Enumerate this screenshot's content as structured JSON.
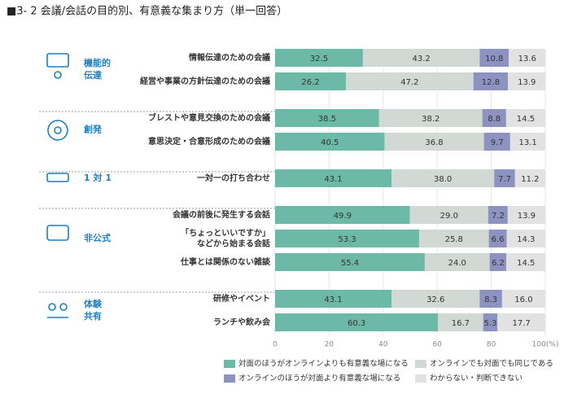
{
  "chart_data": {
    "type": "stacked-bar-horizontal",
    "title": "■3- 2 会議/会話の目的別、有意義な集まり方（単一回答）",
    "groups": [
      {
        "name": [
          "機能的",
          "伝達"
        ],
        "categories": [
          "情報伝達のための会議",
          "経営や事業の方針伝達のための会議"
        ]
      },
      {
        "name": [
          "創発"
        ],
        "categories": [
          "ブレストや意見交換のための会議",
          "意思決定・合意形成のための会議"
        ]
      },
      {
        "name": [
          "1 対 1"
        ],
        "categories": [
          "一対一の打ち合わせ"
        ]
      },
      {
        "name": [
          "非公式"
        ],
        "categories": [
          "会議の前後に発生する会話",
          [
            "「ちょっといいですか」",
            "などから始まる会話"
          ],
          "仕事とは関係のない雑談"
        ]
      },
      {
        "name": [
          "体験",
          "共有"
        ],
        "categories": [
          "研修やイベント",
          "ランチや飲み会"
        ]
      }
    ],
    "series": [
      {
        "name": "対面のほうがオンラインよりも有意義な場になる",
        "color": "#6cb9a7",
        "values": [
          32.5,
          26.2,
          38.5,
          40.5,
          43.1,
          49.9,
          53.3,
          55.4,
          43.1,
          60.3
        ]
      },
      {
        "name": "オンラインでも対面でも同じである",
        "color": "#d2d8d3",
        "values": [
          43.2,
          47.2,
          38.2,
          36.8,
          38.0,
          29.0,
          25.8,
          24.0,
          32.6,
          16.7
        ],
        "value_labels": [
          "43.2",
          "47.2",
          "38.2",
          "36.8",
          "38.0",
          "29.0",
          "25.8",
          "24.0",
          "32.6",
          "16.7"
        ]
      },
      {
        "name": "オンラインのほうが対面より有意義な場になる",
        "color": "#8c93c0",
        "values": [
          10.8,
          12.8,
          8.8,
          9.7,
          7.7,
          7.2,
          6.6,
          6.2,
          8.3,
          5.3
        ]
      },
      {
        "name": "わからない・判断できない",
        "color": "#e2e2e2",
        "values": [
          13.6,
          13.9,
          14.5,
          13.1,
          11.2,
          13.9,
          14.3,
          14.5,
          16.0,
          17.7
        ],
        "value_labels": [
          "13.6",
          "13.9",
          "14.5",
          "13.1",
          "11.2",
          "13.9",
          "14.3",
          "14.5",
          "16.0",
          "17.7"
        ]
      }
    ],
    "xlim": [
      0,
      100
    ],
    "xticks": [
      0,
      20,
      40,
      60,
      80,
      {
        "value": 100,
        "label": "100(%)"
      }
    ],
    "grid": true
  }
}
